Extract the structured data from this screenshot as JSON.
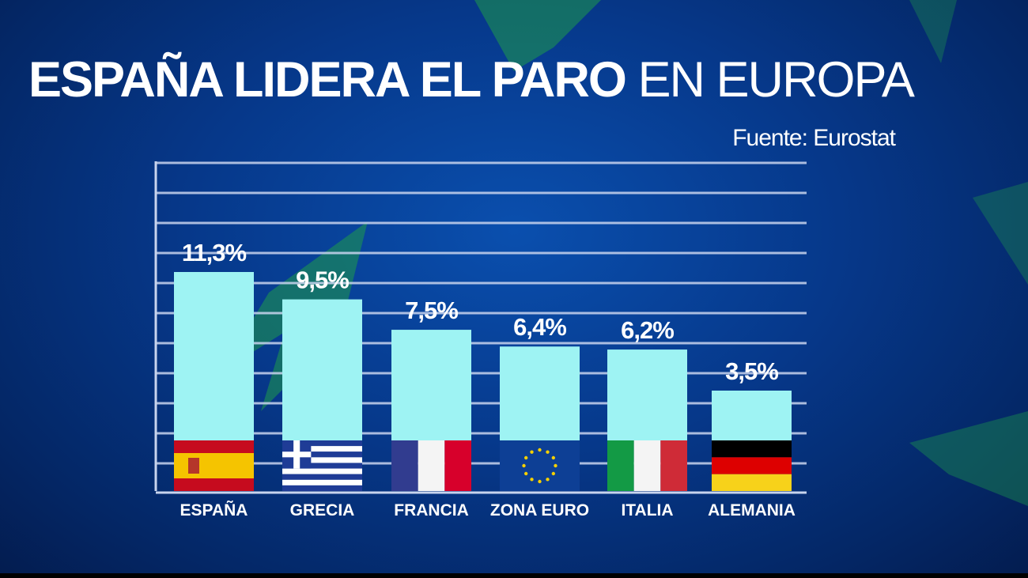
{
  "title": {
    "bold": "ESPAÑA LIDERA EL PARO",
    "light": "EN EUROPA"
  },
  "source": "Fuente: Eurostat",
  "colors": {
    "bar": "#9ef3f3",
    "grid": "#c8d4ee",
    "background": "#06388a",
    "text": "#ffffff"
  },
  "chart_data": {
    "type": "bar",
    "title": "ESPAÑA LIDERA EL PARO EN EUROPA",
    "categories": [
      "ESPAÑA",
      "GRECIA",
      "FRANCIA",
      "ZONA EURO",
      "ITALIA",
      "ALEMANIA"
    ],
    "values": [
      11.3,
      9.5,
      7.5,
      6.4,
      6.2,
      3.5
    ],
    "labels": [
      "11,3%",
      "9,5%",
      "7,5%",
      "6,4%",
      "6,2%",
      "3,5%"
    ],
    "flags": [
      "spain-flag",
      "greece-flag",
      "france-flag",
      "eu-flag",
      "italy-flag",
      "germany-flag"
    ],
    "unit": "%",
    "xlabel": "",
    "ylabel": "",
    "grid": true,
    "legend": "none"
  }
}
